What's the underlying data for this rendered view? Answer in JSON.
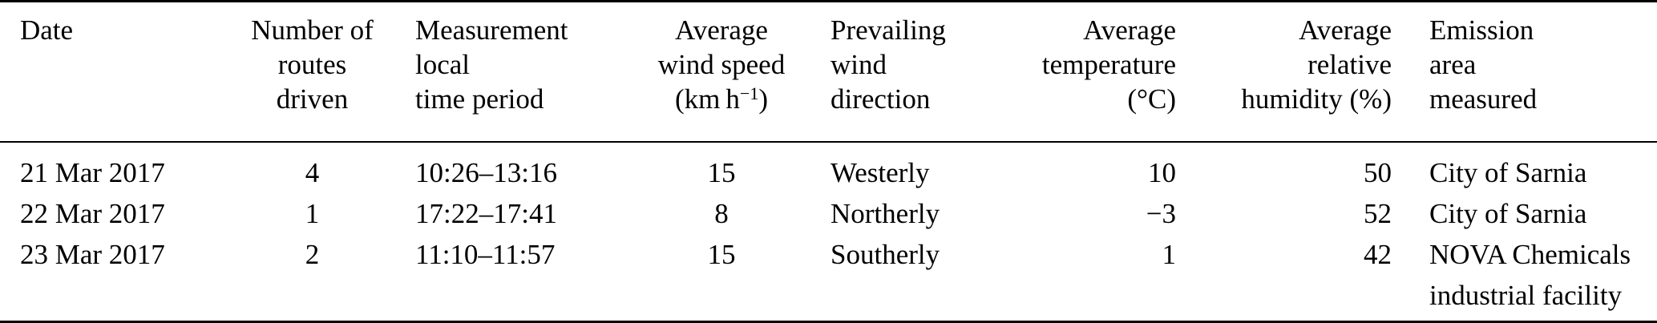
{
  "table": {
    "columns": [
      {
        "id": "date",
        "align": "left",
        "lines": [
          "Date"
        ]
      },
      {
        "id": "routes",
        "align": "center",
        "lines": [
          "Number of",
          "routes",
          "driven"
        ]
      },
      {
        "id": "time",
        "align": "left",
        "lines": [
          "Measurement",
          "local",
          "time period"
        ]
      },
      {
        "id": "wind_speed",
        "align": "center",
        "lines": [
          "Average",
          "wind speed"
        ],
        "unit_prefix": "(km h",
        "unit_sup": "−1",
        "unit_suffix": ")"
      },
      {
        "id": "wind_dir",
        "align": "left",
        "lines": [
          "Prevailing",
          "wind",
          "direction"
        ]
      },
      {
        "id": "temp",
        "align": "right",
        "lines": [
          "Average",
          "temperature",
          "(°C)"
        ]
      },
      {
        "id": "humidity",
        "align": "right",
        "lines": [
          "Average",
          "relative",
          "humidity (%)"
        ]
      },
      {
        "id": "area",
        "align": "left",
        "lines": [
          "Emission",
          "area",
          "measured"
        ]
      }
    ],
    "rows": [
      {
        "date": "21 Mar 2017",
        "routes": "4",
        "time": "10:26–13:16",
        "wind_speed": "15",
        "wind_dir": "Westerly",
        "temp": "10",
        "humidity": "50",
        "area": "City of Sarnia"
      },
      {
        "date": "22 Mar 2017",
        "routes": "1",
        "time": "17:22–17:41",
        "wind_speed": "8",
        "wind_dir": "Northerly",
        "temp": "−3",
        "humidity": "52",
        "area": "City of Sarnia"
      },
      {
        "date": "23 Mar 2017",
        "routes": "2",
        "time": "11:10–11:57",
        "wind_speed": "15",
        "wind_dir": "Southerly",
        "temp": "1",
        "humidity": "42",
        "area": "NOVA Chemicals industrial facility"
      }
    ],
    "colors": {
      "text": "#000000",
      "background": "#ffffff",
      "rule": "#000000"
    }
  }
}
